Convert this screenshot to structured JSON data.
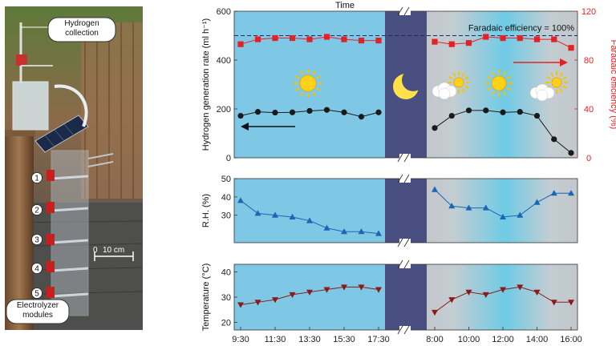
{
  "photo": {
    "callout_top": "Hydrogen collection",
    "callout_bottom": "Electrolyzer modules",
    "scale_bar": "10 cm",
    "scale_zero": "0",
    "module_numbers": [
      "1",
      "2",
      "3",
      "4",
      "5"
    ]
  },
  "chart_data": [
    {
      "type": "line",
      "title": "Time",
      "ylabel": "Hydrogen generation rate (ml h⁻¹)",
      "y2label": "Faradaic efficiency (%)",
      "ylim": [
        0,
        600
      ],
      "yticks": [
        "0",
        "200",
        "400",
        "600"
      ],
      "y2lim": [
        0,
        120
      ],
      "y2ticks": [
        "0",
        "40",
        "80",
        "120"
      ],
      "annotation": "Faradaic efficiency = 100%",
      "grid": false,
      "series": [
        {
          "axis": "left",
          "marker": "circle",
          "color": "#1a1a1a",
          "day1": {
            "x": [
              "9:30",
              "10:30",
              "11:30",
              "12:30",
              "13:30",
              "14:30",
              "15:30",
              "16:30",
              "17:30"
            ],
            "values": [
              172,
              188,
              185,
              186,
              192,
              196,
              186,
              168,
              186
            ]
          },
          "day2": {
            "x": [
              "8:00",
              "9:00",
              "10:00",
              "11:00",
              "12:00",
              "13:00",
              "14:00",
              "15:00",
              "16:00"
            ],
            "values": [
              122,
              172,
              194,
              194,
              186,
              188,
              172,
              76,
              20
            ]
          }
        },
        {
          "axis": "right",
          "marker": "square",
          "color": "#e32227",
          "day1": {
            "x": [
              "9:30",
              "10:30",
              "11:30",
              "12:30",
              "13:30",
              "14:30",
              "15:30",
              "16:30",
              "17:30"
            ],
            "values": [
              93,
              97,
              98,
              98,
              97,
              99,
              97,
              96,
              96
            ]
          },
          "day2": {
            "x": [
              "8:00",
              "9:00",
              "10:00",
              "11:00",
              "12:00",
              "13:00",
              "14:00",
              "15:00",
              "16:00"
            ],
            "values": [
              95,
              93,
              94,
              99,
              98,
              98,
              97,
              97,
              90
            ]
          }
        }
      ]
    },
    {
      "type": "line",
      "ylabel": "R.H. (%)",
      "ylim": [
        15,
        50
      ],
      "yticks": [
        "30",
        "40",
        "50"
      ],
      "series": [
        {
          "marker": "triangle-up",
          "color": "#1a66b3",
          "day1": {
            "x": [
              "9:30",
              "10:30",
              "11:30",
              "12:30",
              "13:30",
              "14:30",
              "15:30",
              "16:30",
              "17:30"
            ],
            "values": [
              38,
              31,
              30,
              29,
              27,
              23,
              21,
              21,
              20
            ]
          },
          "day2": {
            "x": [
              "8:00",
              "9:00",
              "10:00",
              "11:00",
              "12:00",
              "13:00",
              "14:00",
              "15:00",
              "16:00"
            ],
            "values": [
              44,
              35,
              34,
              34,
              29,
              30,
              37,
              42,
              42
            ]
          }
        }
      ]
    },
    {
      "type": "line",
      "ylabel": "Temperature (°C)",
      "ylim": [
        17,
        43
      ],
      "yticks": [
        "20",
        "30",
        "40"
      ],
      "series": [
        {
          "marker": "triangle-down",
          "color": "#8b1a1a",
          "day1": {
            "x": [
              "9:30",
              "10:30",
              "11:30",
              "12:30",
              "13:30",
              "14:30",
              "15:30",
              "16:30",
              "17:30"
            ],
            "values": [
              27,
              28,
              29,
              31,
              32,
              33,
              34,
              34,
              33
            ]
          },
          "day2": {
            "x": [
              "8:00",
              "9:00",
              "10:00",
              "11:00",
              "12:00",
              "13:00",
              "14:00",
              "15:00",
              "16:00"
            ],
            "values": [
              24,
              29,
              32,
              31,
              33,
              34,
              32,
              28,
              28
            ]
          }
        }
      ]
    }
  ],
  "x_tick_labels": {
    "day1": [
      "9:30",
      "11:30",
      "13:30",
      "15:30",
      "17:30"
    ],
    "day2": [
      "8:00",
      "10:00",
      "12:00",
      "14:00",
      "16:00"
    ]
  },
  "colors": {
    "day_sky": "#7ec8e6",
    "night": "#4a4f82",
    "rate": "#1a1a1a",
    "efficiency": "#e32227",
    "rh": "#1a66b3",
    "temperature": "#8b1a1a"
  }
}
